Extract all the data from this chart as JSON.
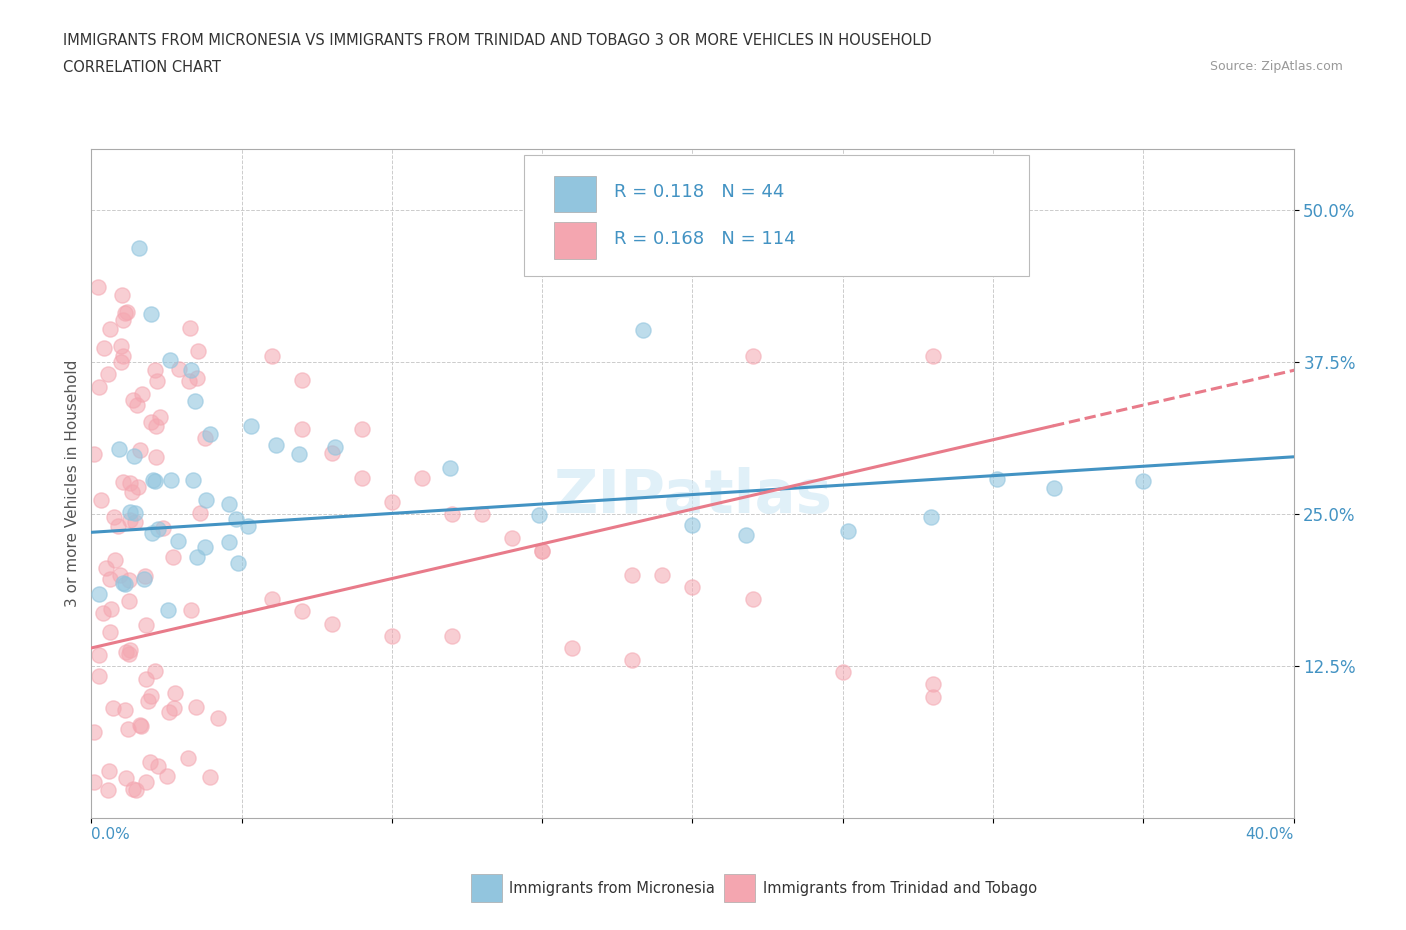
{
  "title_line1": "IMMIGRANTS FROM MICRONESIA VS IMMIGRANTS FROM TRINIDAD AND TOBAGO 3 OR MORE VEHICLES IN HOUSEHOLD",
  "title_line2": "CORRELATION CHART",
  "source_text": "Source: ZipAtlas.com",
  "ylabel": "3 or more Vehicles in Household",
  "ytick_vals": [
    0.125,
    0.25,
    0.375,
    0.5
  ],
  "legend_label1": "Immigrants from Micronesia",
  "legend_label2": "Immigrants from Trinidad and Tobago",
  "R1": "0.118",
  "N1": "44",
  "R2": "0.168",
  "N2": "114",
  "color1": "#92c5de",
  "color2": "#f4a6b0",
  "line1_color": "#4393c3",
  "line2_color": "#e87b8a",
  "ytick_color": "#4393c3",
  "watermark": "ZIPatlas",
  "xmin": 0.0,
  "xmax": 0.4,
  "ymin": 0.0,
  "ymax": 0.55
}
